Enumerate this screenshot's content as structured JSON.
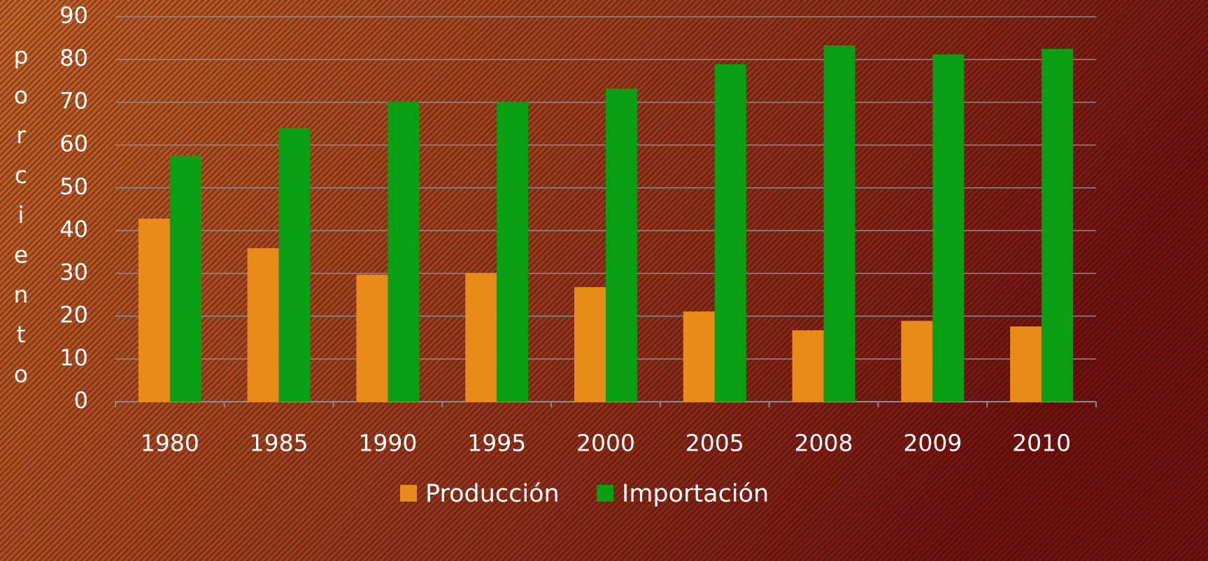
{
  "chart_data": {
    "type": "bar",
    "y_label": "porciento",
    "categories": [
      "1980",
      "1985",
      "1990",
      "1995",
      "2000",
      "2005",
      "2008",
      "2009",
      "2010"
    ],
    "series": [
      {
        "name": "Producción",
        "color": "#e88b18",
        "values": [
          42.8,
          35.9,
          29.7,
          30.1,
          26.8,
          21.1,
          16.7,
          18.9,
          17.6
        ]
      },
      {
        "name": "Importación",
        "color": "#0a9e14",
        "values": [
          57.5,
          64.0,
          70.2,
          70.1,
          73.2,
          78.9,
          83.3,
          81.2,
          82.5
        ]
      }
    ],
    "ylim": [
      0,
      90
    ],
    "yticks": [
      0,
      10,
      20,
      30,
      40,
      50,
      60,
      70,
      80,
      90
    ],
    "grid": true,
    "legend": "bottom"
  }
}
